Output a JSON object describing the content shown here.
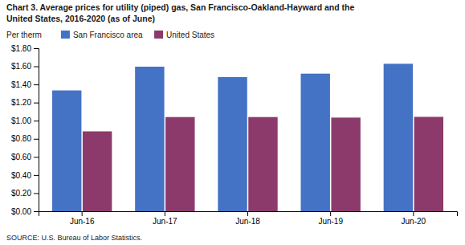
{
  "chart_data": {
    "type": "bar",
    "title": [
      "Chart 3. Average prices for utility (piped) gas, San Francisco-Oakland-Hayward and the",
      "United States, 2016-2020  (as of June)"
    ],
    "y_label": "Per therm",
    "source": "SOURCE: U.S. Bureau of Labor Statistics.",
    "categories": [
      "Jun-16",
      "Jun-17",
      "Jun-18",
      "Jun-19",
      "Jun-20"
    ],
    "series": [
      {
        "name": "San Francisco area",
        "color": "#4472C4",
        "values": [
          1.334,
          1.596,
          1.481,
          1.519,
          1.628
        ]
      },
      {
        "name": "United States",
        "color": "#8B3A6B",
        "values": [
          0.882,
          1.04,
          1.04,
          1.034,
          1.042
        ]
      }
    ],
    "ylim": [
      0.0,
      1.8
    ],
    "yticks": [
      {
        "value": 0.0,
        "label": "$0.00"
      },
      {
        "value": 0.2,
        "label": "$0.20"
      },
      {
        "value": 0.4,
        "label": "$0.40"
      },
      {
        "value": 0.6,
        "label": "$0.60"
      },
      {
        "value": 0.8,
        "label": "$0.80"
      },
      {
        "value": 1.0,
        "label": "$1.00"
      },
      {
        "value": 1.2,
        "label": "$1.20"
      },
      {
        "value": 1.4,
        "label": "$1.40"
      },
      {
        "value": 1.6,
        "label": "$1.60"
      },
      {
        "value": 1.8,
        "label": "$1.80"
      }
    ],
    "grid": false,
    "legend": "upper left"
  }
}
